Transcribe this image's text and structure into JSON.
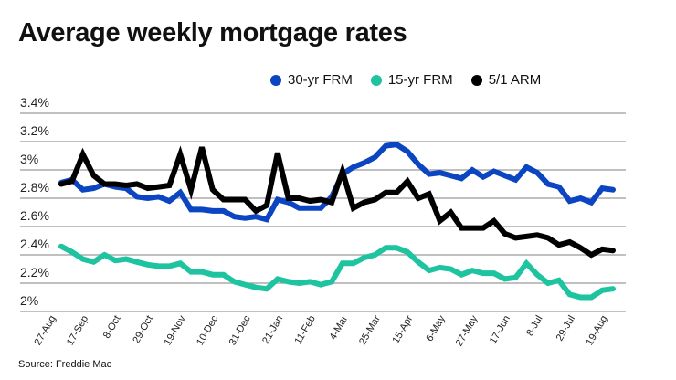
{
  "chart_data": {
    "type": "line",
    "title": "Average weekly mortgage rates",
    "source": "Source: Freddie Mac",
    "xlabel": "",
    "ylabel": "",
    "ylim": [
      2.0,
      3.4
    ],
    "y_ticks": [
      "2%",
      "2.2%",
      "2.4%",
      "2.6%",
      "2.8%",
      "3%",
      "3.2%",
      "3.4%"
    ],
    "x_tick_labels": [
      "27-Aug",
      "17-Sep",
      "8-Oct",
      "29-Oct",
      "19-Nov",
      "10-Dec",
      "31-Dec",
      "21-Jan",
      "11-Feb",
      "4-Mar",
      "25-Mar",
      "15-Apr",
      "6-May",
      "27-May",
      "17-Jun",
      "8-Jul",
      "29-Jul",
      "19-Aug"
    ],
    "x_tick_every_n_weeks": 3,
    "grid": true,
    "legend_position": "top",
    "series": [
      {
        "name": "30-yr FRM",
        "color": "#0b45c1",
        "values": [
          2.91,
          2.93,
          2.86,
          2.87,
          2.9,
          2.88,
          2.87,
          2.81,
          2.8,
          2.81,
          2.78,
          2.84,
          2.72,
          2.72,
          2.71,
          2.71,
          2.67,
          2.66,
          2.67,
          2.65,
          2.79,
          2.77,
          2.73,
          2.73,
          2.73,
          2.81,
          2.97,
          3.02,
          3.05,
          3.09,
          3.17,
          3.18,
          3.13,
          3.04,
          2.97,
          2.98,
          2.96,
          2.94,
          3.0,
          2.95,
          2.99,
          2.96,
          2.93,
          3.02,
          2.98,
          2.9,
          2.88,
          2.78,
          2.8,
          2.77,
          2.87,
          2.86
        ]
      },
      {
        "name": "15-yr FRM",
        "color": "#1ec4a0",
        "values": [
          2.46,
          2.42,
          2.37,
          2.35,
          2.4,
          2.36,
          2.37,
          2.35,
          2.33,
          2.32,
          2.32,
          2.34,
          2.28,
          2.28,
          2.26,
          2.26,
          2.21,
          2.19,
          2.17,
          2.16,
          2.23,
          2.21,
          2.2,
          2.21,
          2.19,
          2.21,
          2.34,
          2.34,
          2.38,
          2.4,
          2.45,
          2.45,
          2.42,
          2.35,
          2.29,
          2.31,
          2.3,
          2.26,
          2.29,
          2.27,
          2.27,
          2.23,
          2.24,
          2.34,
          2.26,
          2.2,
          2.22,
          2.12,
          2.1,
          2.1,
          2.15,
          2.16
        ]
      },
      {
        "name": "5/1 ARM",
        "color": "#000000",
        "values": [
          2.9,
          2.92,
          3.11,
          2.96,
          2.9,
          2.9,
          2.89,
          2.9,
          2.87,
          2.88,
          2.89,
          3.11,
          2.86,
          3.16,
          2.86,
          2.79,
          2.79,
          2.79,
          2.71,
          2.75,
          3.12,
          2.8,
          2.8,
          2.78,
          2.79,
          2.77,
          2.99,
          2.73,
          2.77,
          2.79,
          2.84,
          2.84,
          2.92,
          2.8,
          2.83,
          2.64,
          2.7,
          2.59,
          2.59,
          2.59,
          2.64,
          2.55,
          2.52,
          2.53,
          2.54,
          2.52,
          2.47,
          2.49,
          2.45,
          2.4,
          2.44,
          2.43
        ]
      }
    ]
  }
}
